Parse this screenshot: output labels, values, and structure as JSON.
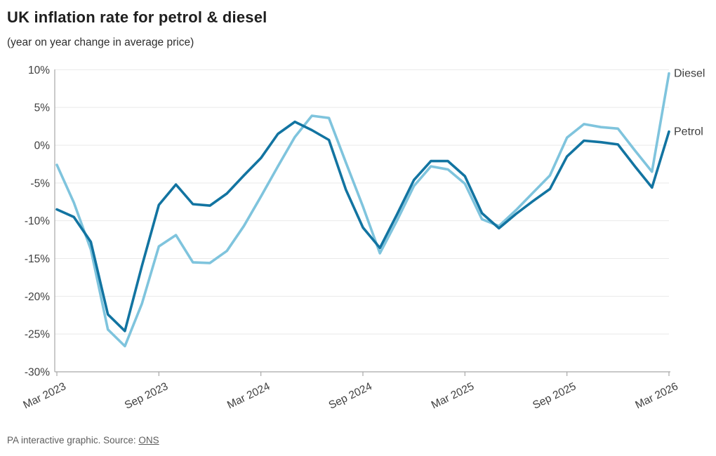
{
  "header": {
    "title": "UK inflation rate for petrol & diesel",
    "subtitle": "(year on year change in average price)"
  },
  "chart_data": {
    "type": "line",
    "title": "UK inflation rate for petrol & diesel",
    "subtitle": "(year on year change in average price)",
    "x_months": [
      "Mar 2023",
      "Apr 2023",
      "May 2023",
      "Jun 2023",
      "Jul 2023",
      "Aug 2023",
      "Sep 2023",
      "Oct 2023",
      "Nov 2023",
      "Dec 2023",
      "Jan 2024",
      "Feb 2024",
      "Mar 2024",
      "Apr 2024",
      "May 2024",
      "Jun 2024",
      "Jul 2024",
      "Aug 2024",
      "Sep 2024",
      "Oct 2024",
      "Nov 2024",
      "Dec 2024",
      "Jan 2025",
      "Feb 2025",
      "Mar 2025",
      "Apr 2025",
      "May 2025",
      "Jun 2025",
      "Jul 2025",
      "Aug 2025",
      "Sep 2025",
      "Oct 2025",
      "Nov 2025",
      "Dec 2025",
      "Jan 2026",
      "Feb 2026",
      "Mar 2026"
    ],
    "series": [
      {
        "name": "Diesel",
        "color": "#7fc4dd",
        "values": [
          -2.6,
          -7.6,
          -13.8,
          -24.4,
          -26.6,
          -21.0,
          -13.4,
          -11.9,
          -15.5,
          -15.6,
          -14.0,
          -10.7,
          -6.8,
          -2.8,
          1.1,
          3.9,
          3.6,
          -2.3,
          -8.1,
          -14.3,
          -10.0,
          -5.4,
          -2.8,
          -3.2,
          -5.1,
          -9.8,
          -10.7,
          -8.6,
          -6.3,
          -4.0,
          1.0,
          2.8,
          2.4,
          2.2,
          -0.7,
          -3.5,
          9.5
        ]
      },
      {
        "name": "Petrol",
        "color": "#1274a1",
        "values": [
          -8.5,
          -9.5,
          -12.8,
          -22.4,
          -24.6,
          -16.0,
          -7.9,
          -5.2,
          -7.8,
          -8.0,
          -6.4,
          -4.0,
          -1.7,
          1.5,
          3.1,
          2.0,
          0.7,
          -5.9,
          -10.9,
          -13.6,
          -9.2,
          -4.6,
          -2.1,
          -2.1,
          -4.1,
          -9.0,
          -11.0,
          -9.1,
          -7.4,
          -5.8,
          -1.5,
          0.6,
          0.4,
          0.1,
          -2.8,
          -5.6,
          1.8
        ]
      }
    ],
    "yticks": [
      10,
      5,
      0,
      -5,
      -10,
      -15,
      -20,
      -25,
      -30
    ],
    "ytick_labels": [
      "10%",
      "5%",
      "0%",
      "-5%",
      "-10%",
      "-15%",
      "-20%",
      "-25%",
      "-30%"
    ],
    "xtick_indices": [
      0,
      6,
      12,
      18,
      24,
      30,
      36
    ],
    "xtick_labels": [
      "Mar 2023",
      "Sep 2023",
      "Mar 2024",
      "Sep 2024",
      "Mar 2025",
      "Sep 2025",
      "Mar 2026"
    ],
    "ylim": [
      -30,
      10
    ],
    "grid": "horizontal",
    "legend_position": "line-end-labels",
    "colors": {
      "grid": "#e9e9e9",
      "axis": "#a8a8a8",
      "tick_text": "#3f3f3f",
      "end_label_text": "#3d3d3d"
    }
  },
  "footer": {
    "credit_prefix": "PA interactive graphic. Source: ",
    "source_link": "ONS"
  }
}
